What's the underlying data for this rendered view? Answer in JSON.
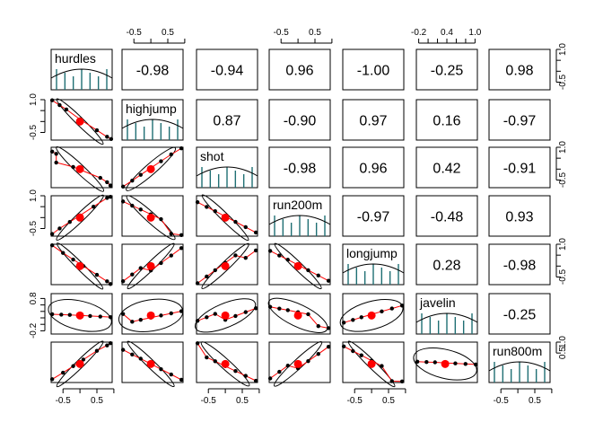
{
  "chart_data": {
    "type": "scatter",
    "variables": [
      "hurdles",
      "highjump",
      "shot",
      "run200m",
      "longjump",
      "javelin",
      "run800m"
    ],
    "correlations": [
      [
        "",
        "-0.98",
        "-0.94",
        "0.96",
        "-1.00",
        "-0.25",
        "0.98"
      ],
      [
        "",
        "",
        "0.87",
        "-0.90",
        "0.97",
        "0.16",
        "-0.97"
      ],
      [
        "",
        "",
        "",
        "-0.98",
        "0.96",
        "0.42",
        "-0.91"
      ],
      [
        "",
        "",
        "",
        "",
        "-0.97",
        "-0.48",
        "0.93"
      ],
      [
        "",
        "",
        "",
        "",
        "",
        "0.28",
        "-0.98"
      ],
      [
        "",
        "",
        "",
        "",
        "",
        "",
        "-0.25"
      ]
    ],
    "axis_ticks": {
      "standard": [
        "-0.5",
        "0.5"
      ],
      "standard_y": [
        "-0.5",
        "1.0"
      ],
      "javelin_top": [
        "-0.2",
        "0.4",
        "1.0"
      ],
      "javelin_y": [
        "-0.2",
        "0.8"
      ],
      "right_y": [
        "-0.5",
        "1.0"
      ],
      "run800m_y": [
        "0.5",
        "1.0"
      ],
      "bottom": [
        "-0.5",
        "0.5"
      ]
    },
    "tick_values": {
      "standard": [
        -0.5,
        0,
        0.5,
        1.0
      ],
      "javelin": [
        -0.2,
        0.0,
        0.2,
        0.4,
        0.6,
        0.8,
        1.0
      ],
      "run800m_y": [
        0.5,
        1.0
      ]
    },
    "axis_ranges": {
      "x": [
        -0.85,
        0.95
      ],
      "y": [
        -0.85,
        1.0
      ]
    },
    "scatter": {
      "hurdles_highjump": [
        [
          -0.82,
          0.97
        ],
        [
          -0.6,
          0.75
        ],
        [
          -0.4,
          0.55
        ],
        [
          0.0,
          0.1
        ],
        [
          0.5,
          -0.4
        ],
        [
          0.8,
          -0.7
        ],
        [
          0.92,
          -0.8
        ]
      ],
      "hurdles_shot": [
        [
          -0.82,
          0.8
        ],
        [
          -0.7,
          0.7
        ],
        [
          -0.7,
          0.3
        ],
        [
          -0.2,
          0.1
        ],
        [
          0.6,
          -0.4
        ],
        [
          0.8,
          -0.6
        ],
        [
          0.9,
          -0.75
        ]
      ],
      "hurdles_run200m": [
        [
          -0.82,
          -0.75
        ],
        [
          -0.6,
          -0.5
        ],
        [
          -0.3,
          -0.2
        ],
        [
          0.0,
          0.1
        ],
        [
          0.4,
          0.5
        ],
        [
          0.8,
          0.9
        ],
        [
          0.9,
          0.95
        ]
      ],
      "hurdles_longjump": [
        [
          -0.82,
          0.95
        ],
        [
          -0.5,
          0.6
        ],
        [
          -0.2,
          0.3
        ],
        [
          0.1,
          0.0
        ],
        [
          0.5,
          -0.4
        ],
        [
          0.8,
          -0.7
        ],
        [
          0.9,
          -0.82
        ]
      ],
      "hurdles_run800m": [
        [
          -0.82,
          -0.7
        ],
        [
          -0.5,
          -0.4
        ],
        [
          -0.2,
          -0.1
        ],
        [
          0.1,
          0.2
        ],
        [
          0.5,
          0.6
        ],
        [
          0.8,
          0.85
        ],
        [
          0.9,
          0.95
        ]
      ]
    },
    "mean_point": [
      0.0,
      0.0
    ],
    "colors": {
      "points": "#000000",
      "mean": "#ff0000",
      "smooth": "#ff0000",
      "ellipse": "#000000",
      "histogram": "#1f6f73"
    }
  }
}
